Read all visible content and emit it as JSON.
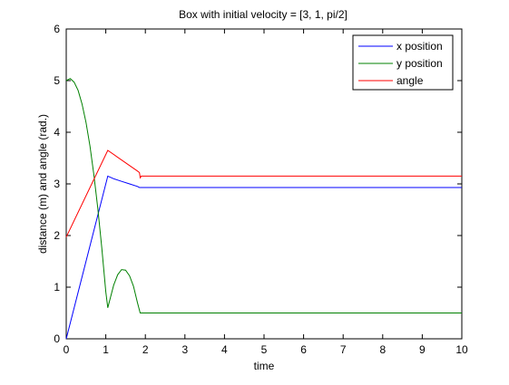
{
  "chart_data": {
    "type": "line",
    "title": "Box with initial velocity = [3, 1, pi/2]",
    "xlabel": "time",
    "ylabel": "distance (m) and angle (rad.)",
    "xlim": [
      0,
      10
    ],
    "ylim": [
      0,
      6
    ],
    "xticks": [
      "0",
      "1",
      "2",
      "3",
      "4",
      "5",
      "6",
      "7",
      "8",
      "9",
      "10"
    ],
    "yticks": [
      "0",
      "1",
      "2",
      "3",
      "4",
      "5",
      "6"
    ],
    "grid": false,
    "legend_position": "top-right",
    "series": [
      {
        "name": "x position",
        "color": "#0000ff",
        "x": [
          0,
          1.05,
          1.2,
          1.4,
          1.6,
          1.8,
          1.85,
          2.5,
          10
        ],
        "y": [
          0,
          3.15,
          3.1,
          3.05,
          3.0,
          2.95,
          2.93,
          2.93,
          2.93
        ]
      },
      {
        "name": "y position",
        "color": "#008000",
        "x": [
          0,
          0.1,
          0.2,
          0.3,
          0.4,
          0.5,
          0.6,
          0.7,
          0.8,
          0.9,
          1.0,
          1.05,
          1.1,
          1.2,
          1.3,
          1.4,
          1.5,
          1.6,
          1.7,
          1.8,
          1.87,
          1.9,
          2.5,
          10
        ],
        "y": [
          5.0,
          5.04,
          4.97,
          4.81,
          4.55,
          4.19,
          3.73,
          3.17,
          2.51,
          1.76,
          0.91,
          0.6,
          0.75,
          1.04,
          1.24,
          1.34,
          1.33,
          1.22,
          1.02,
          0.7,
          0.5,
          0.5,
          0.5,
          0.5
        ]
      },
      {
        "name": "angle",
        "color": "#ff0000",
        "x": [
          0,
          1.05,
          1.8,
          1.85,
          1.87,
          1.9,
          2.5,
          10
        ],
        "y": [
          1.97,
          3.65,
          3.25,
          3.22,
          3.12,
          3.15,
          3.15,
          3.15
        ]
      }
    ]
  }
}
